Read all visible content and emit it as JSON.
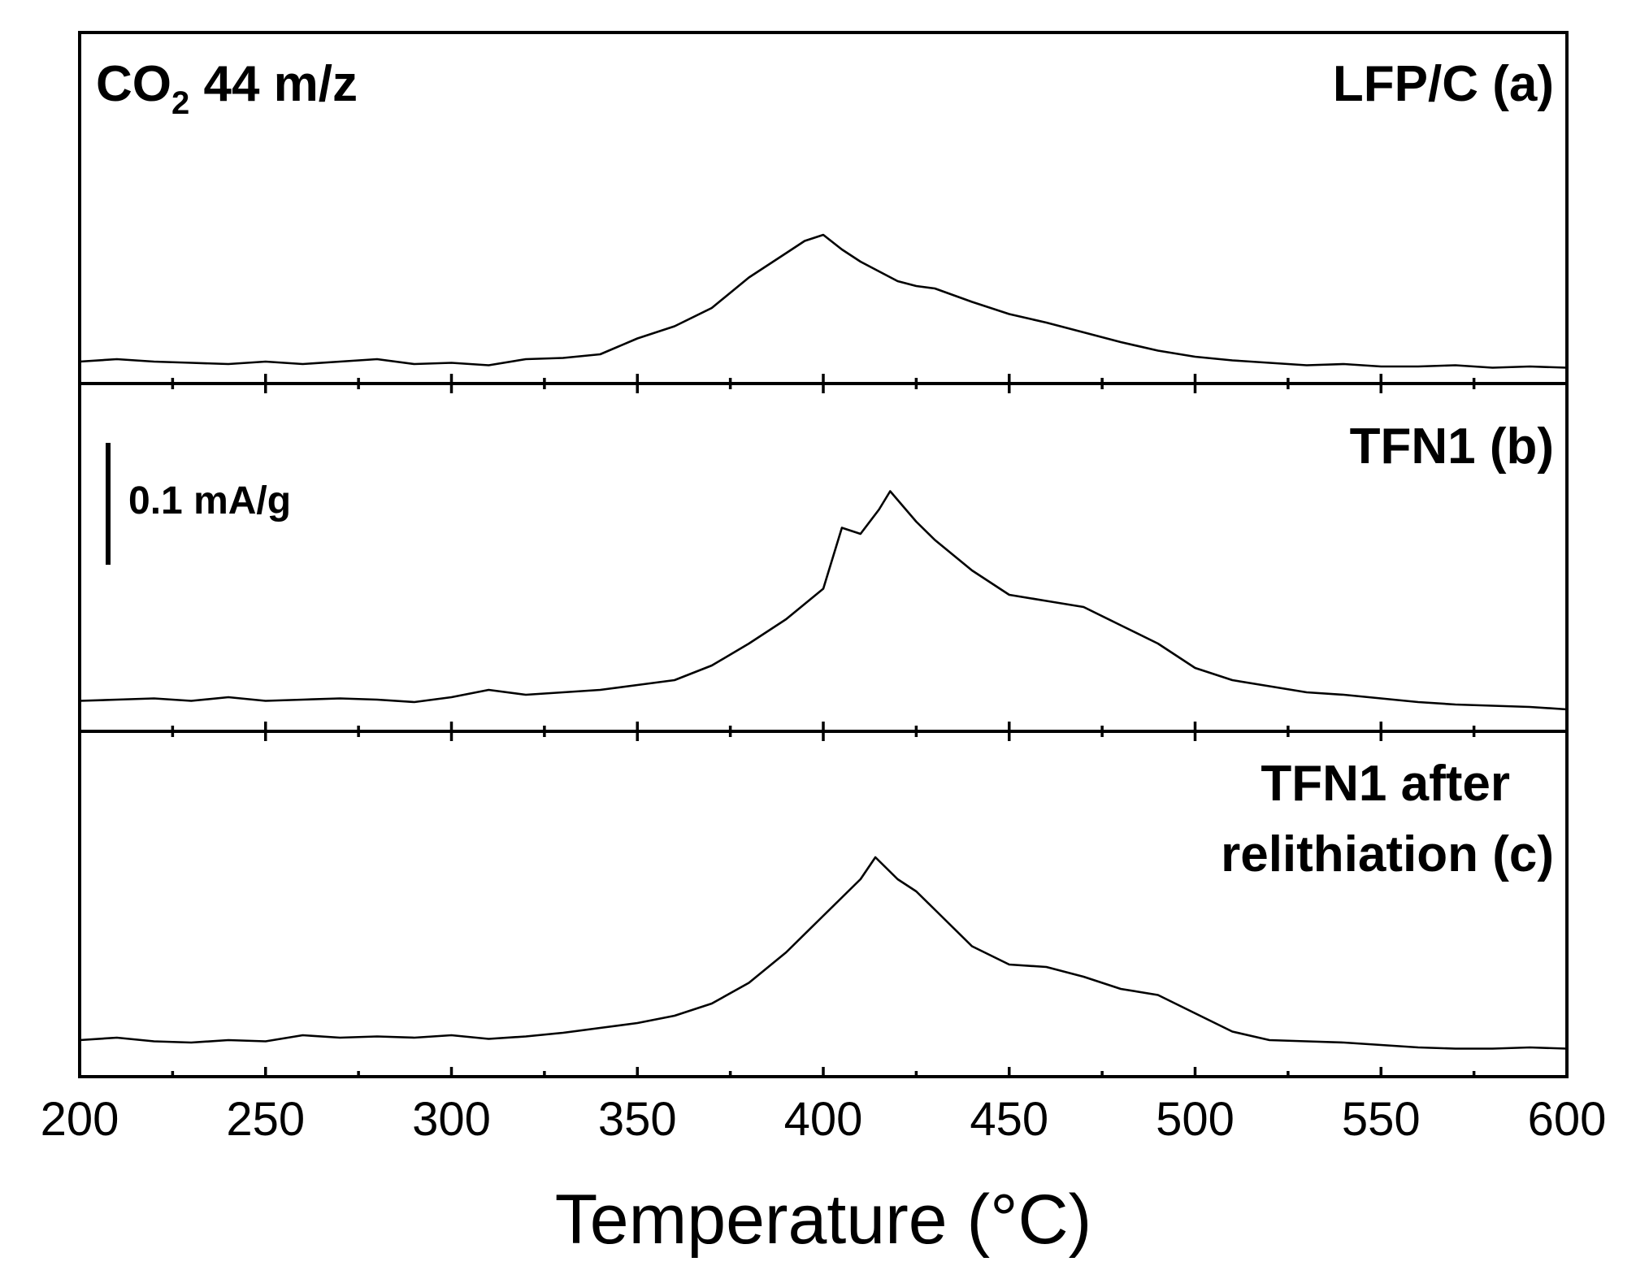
{
  "chart_data": {
    "type": "line",
    "layout": "stacked-panels",
    "xlabel": "Temperature (°C)",
    "xlim": [
      200,
      600
    ],
    "x_ticks": [
      "200",
      "250",
      "300",
      "350",
      "400",
      "450",
      "500",
      "550",
      "600"
    ],
    "ion_label": {
      "species": "CO",
      "subscript": "2",
      "rest": " 44 m/z"
    },
    "scale_bar": {
      "label": "0.1 mA/g",
      "value_mA_per_g": 0.1
    },
    "ylabel": "",
    "y_ticks_visible": false,
    "panels": [
      {
        "name": "LFP/C (a)",
        "title_lines": [
          "LFP/C (a)"
        ],
        "x": [
          200,
          210,
          220,
          230,
          240,
          250,
          260,
          270,
          280,
          290,
          300,
          310,
          320,
          330,
          340,
          350,
          360,
          370,
          380,
          390,
          395,
          400,
          405,
          410,
          415,
          420,
          425,
          430,
          440,
          450,
          460,
          470,
          480,
          490,
          500,
          510,
          520,
          530,
          540,
          550,
          560,
          570,
          580,
          590,
          600
        ],
        "y": [
          0.006,
          0.008,
          0.006,
          0.005,
          0.004,
          0.006,
          0.004,
          0.006,
          0.008,
          0.004,
          0.005,
          0.003,
          0.008,
          0.009,
          0.012,
          0.025,
          0.035,
          0.05,
          0.075,
          0.095,
          0.105,
          0.11,
          0.098,
          0.088,
          0.08,
          0.072,
          0.068,
          0.066,
          0.055,
          0.045,
          0.038,
          0.03,
          0.022,
          0.015,
          0.01,
          0.007,
          0.005,
          0.003,
          0.004,
          0.002,
          0.002,
          0.003,
          0.001,
          0.002,
          0.001
        ]
      },
      {
        "name": "TFN1 (b)",
        "title_lines": [
          "TFN1 (b)"
        ],
        "x": [
          200,
          210,
          220,
          230,
          240,
          250,
          260,
          270,
          280,
          290,
          300,
          310,
          320,
          330,
          340,
          350,
          360,
          370,
          380,
          390,
          400,
          405,
          410,
          415,
          418,
          425,
          430,
          440,
          450,
          460,
          470,
          480,
          490,
          500,
          510,
          520,
          530,
          540,
          550,
          560,
          570,
          580,
          590,
          600
        ],
        "y": [
          0.013,
          0.014,
          0.015,
          0.013,
          0.016,
          0.013,
          0.014,
          0.015,
          0.014,
          0.012,
          0.016,
          0.022,
          0.018,
          0.02,
          0.022,
          0.026,
          0.03,
          0.042,
          0.06,
          0.08,
          0.105,
          0.155,
          0.15,
          0.17,
          0.185,
          0.16,
          0.145,
          0.12,
          0.1,
          0.095,
          0.09,
          0.075,
          0.06,
          0.04,
          0.03,
          0.025,
          0.02,
          0.018,
          0.015,
          0.012,
          0.01,
          0.009,
          0.008,
          0.006
        ]
      },
      {
        "name": "TFN1 after relithiation (c)",
        "title_lines": [
          "TFN1 after",
          "relithiation (c)"
        ],
        "x": [
          200,
          210,
          220,
          230,
          240,
          250,
          260,
          270,
          280,
          290,
          300,
          310,
          320,
          330,
          340,
          350,
          360,
          370,
          380,
          390,
          400,
          405,
          410,
          414,
          420,
          425,
          430,
          440,
          450,
          460,
          470,
          480,
          490,
          500,
          510,
          520,
          530,
          540,
          550,
          560,
          570,
          580,
          590,
          600
        ],
        "y": [
          0.018,
          0.02,
          0.017,
          0.016,
          0.018,
          0.017,
          0.022,
          0.02,
          0.021,
          0.02,
          0.022,
          0.019,
          0.021,
          0.024,
          0.028,
          0.032,
          0.038,
          0.048,
          0.065,
          0.09,
          0.12,
          0.135,
          0.15,
          0.168,
          0.15,
          0.14,
          0.125,
          0.095,
          0.08,
          0.078,
          0.07,
          0.06,
          0.055,
          0.04,
          0.025,
          0.018,
          0.017,
          0.016,
          0.014,
          0.012,
          0.011,
          0.011,
          0.012,
          0.011
        ]
      }
    ]
  }
}
